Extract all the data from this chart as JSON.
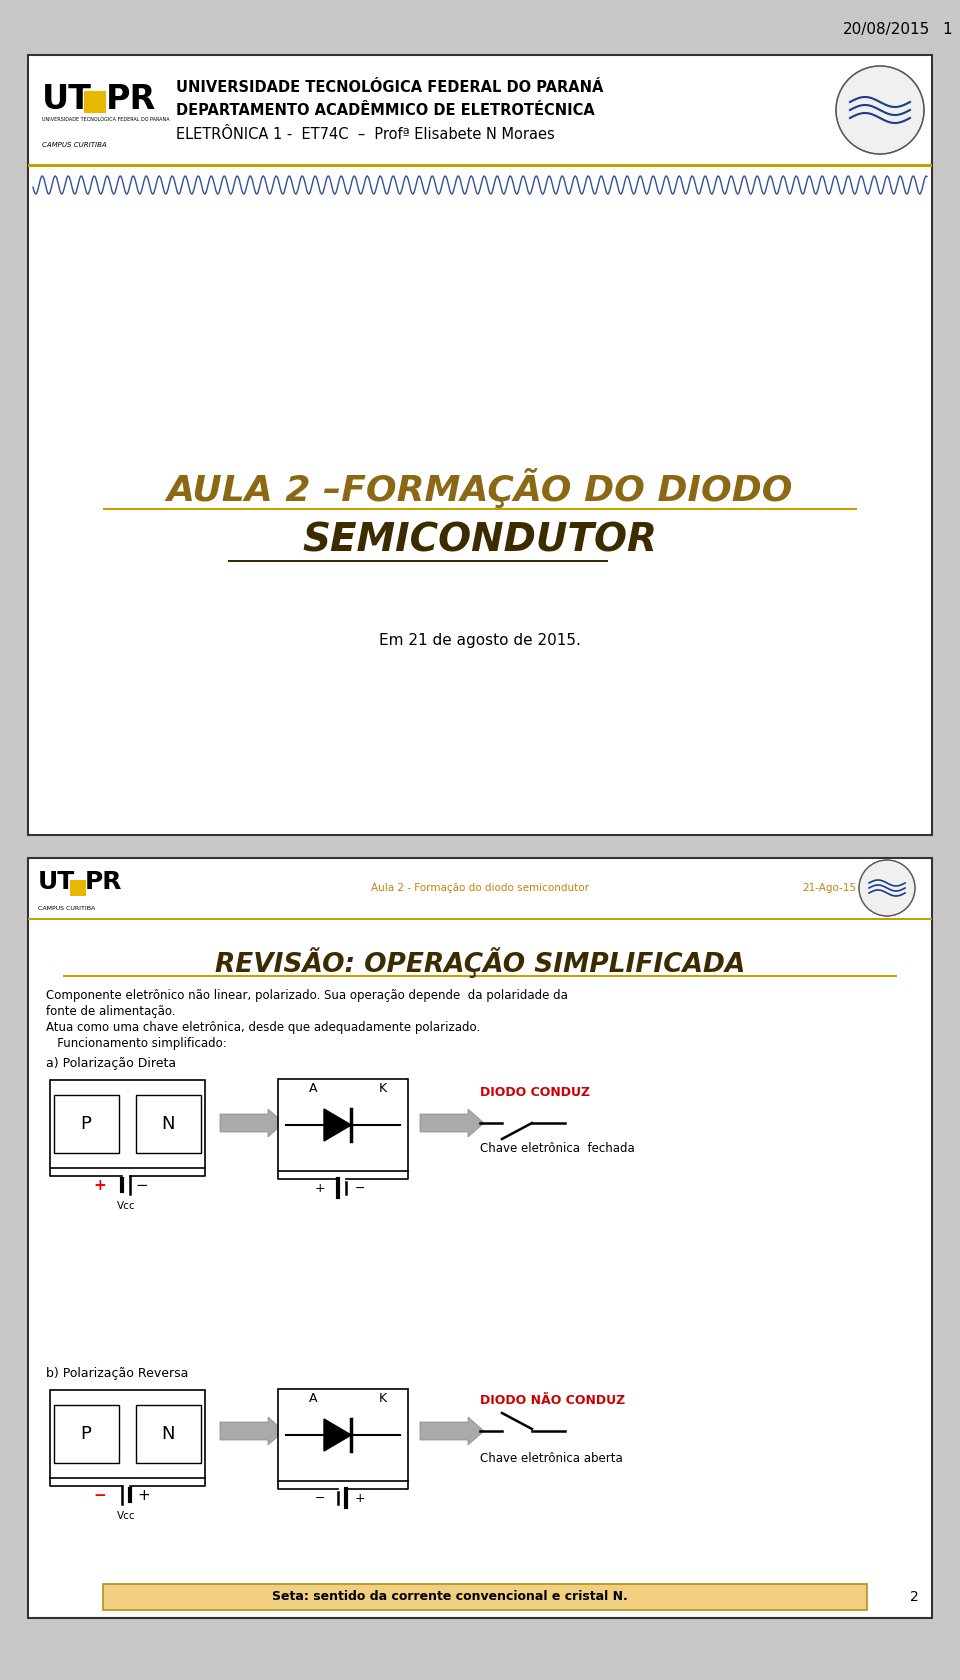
{
  "date_text": "20/08/2015",
  "page_num": "1",
  "slide1": {
    "uni_line1": "UNIVERSIDADE TECNOLÓGICA FEDERAL DO PARANÁ",
    "uni_line2": "DEPARTAMENTO ACADÊMMICO DE ELETROTÉCNICA",
    "uni_line3": "ELETRÔNICA 1 -  ET74C  –  Profª Elisabete N Moraes",
    "title_line1": "AULA 2 –FORMAÇÃO DO DIODO",
    "title_line2": "SEMICONDUTOR",
    "date_sub": "Em 21 de agosto de 2015."
  },
  "slide2": {
    "header_center": "Aula 2 - Formação do diodo semicondutor",
    "header_right": "21-Ago-15",
    "title": "REVISÃO: OPERAÇÃO SIMPLIFICADA",
    "text1": "Componente eletrônico não linear, polarizado. Sua operação depende  da polaridade da",
    "text2": "fonte de alimentação.",
    "text3": "Atua como uma chave eletrônica, desde que adequadamente polarizado.",
    "text4": "   Funcionamento simplificado:",
    "label_a": "a) Polarização Direta",
    "label_b": "b) Polarização Reversa",
    "diodo_conduz": "DIODO CONDUZ",
    "diodo_nao_conduz": "DIODO NÃO CONDUZ",
    "chave_fechada": "Chave eletrônica  fechada",
    "chave_aberta": "Chave eletrônica aberta",
    "footer": "Seta: sentido da corrente convencional e cristal N.",
    "page2": "2"
  },
  "colors": {
    "title_brown": "#8B6914",
    "title_dark": "#3d2b00",
    "red": "#CC0000",
    "orange": "#C8820A",
    "gold": "#C8A000",
    "blue_logo": "#1A3A8A",
    "slide_border": "#333333",
    "bg": "#C8C8C8",
    "footer_bg": "#F0D080",
    "wave_blue": "#1A3A8A"
  }
}
